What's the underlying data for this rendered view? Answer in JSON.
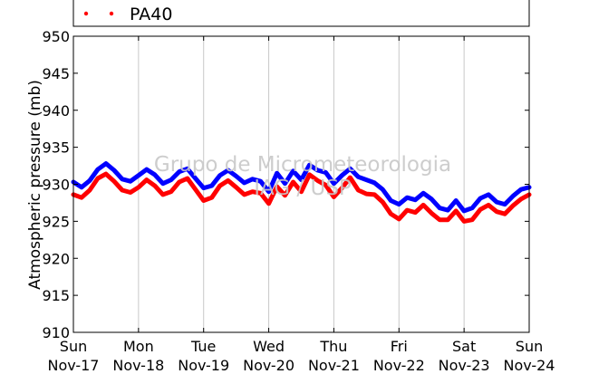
{
  "chart_data": {
    "type": "line",
    "ylabel": "Atmospheric pressure (mb)",
    "ylim": [
      910,
      950
    ],
    "yticks": [
      910,
      915,
      920,
      925,
      930,
      935,
      940,
      945,
      950
    ],
    "xlim": [
      "2013-11-17 00:00",
      "2013-11-24 00:00"
    ],
    "x_ticks": [
      {
        "day": "Sun",
        "date": "Nov-17"
      },
      {
        "day": "Mon",
        "date": "Nov-18"
      },
      {
        "day": "Tue",
        "date": "Nov-19"
      },
      {
        "day": "Wed",
        "date": "Nov-20"
      },
      {
        "day": "Thu",
        "date": "Nov-21"
      },
      {
        "day": "Fri",
        "date": "Nov-22"
      },
      {
        "day": "Sat",
        "date": "Nov-23"
      },
      {
        "day": "Sun",
        "date": "Nov-24"
      }
    ],
    "grid": "vertical lines at day ticks",
    "legend_placement": "top",
    "watermark": [
      "Grupo de Micrometeorologia",
      "IAG / USP"
    ],
    "series": [
      {
        "color": "#0000ff",
        "x": [
          "2013-11-17 00:00",
          "2013-11-17 03:00",
          "2013-11-17 06:00",
          "2013-11-17 09:00",
          "2013-11-17 12:00",
          "2013-11-17 15:00",
          "2013-11-17 18:00",
          "2013-11-17 21:00",
          "2013-11-18 00:00",
          "2013-11-18 03:00",
          "2013-11-18 06:00",
          "2013-11-18 09:00",
          "2013-11-18 12:00",
          "2013-11-18 15:00",
          "2013-11-18 18:00",
          "2013-11-18 21:00",
          "2013-11-19 00:00",
          "2013-11-19 03:00",
          "2013-11-19 06:00",
          "2013-11-19 09:00",
          "2013-11-19 12:00",
          "2013-11-19 15:00",
          "2013-11-19 18:00",
          "2013-11-19 21:00",
          "2013-11-20 00:00",
          "2013-11-20 03:00",
          "2013-11-20 06:00",
          "2013-11-20 09:00",
          "2013-11-20 12:00",
          "2013-11-20 15:00",
          "2013-11-20 18:00",
          "2013-11-20 21:00",
          "2013-11-21 00:00",
          "2013-11-21 03:00",
          "2013-11-21 06:00",
          "2013-11-21 09:00",
          "2013-11-21 12:00",
          "2013-11-21 15:00",
          "2013-11-21 18:00",
          "2013-11-21 21:00",
          "2013-11-22 00:00",
          "2013-11-22 03:00",
          "2013-11-22 06:00",
          "2013-11-22 09:00",
          "2013-11-22 12:00",
          "2013-11-22 15:00",
          "2013-11-22 18:00",
          "2013-11-22 21:00",
          "2013-11-23 00:00",
          "2013-11-23 03:00",
          "2013-11-23 06:00",
          "2013-11-23 09:00",
          "2013-11-23 12:00",
          "2013-11-23 15:00",
          "2013-11-23 18:00",
          "2013-11-23 21:00",
          "2013-11-24 00:00"
        ],
        "values": [
          930.3,
          929.6,
          930.5,
          932.0,
          932.8,
          931.9,
          930.7,
          930.4,
          931.2,
          932.0,
          931.3,
          930.1,
          930.6,
          931.7,
          932.1,
          930.8,
          929.5,
          929.8,
          931.2,
          931.9,
          931.1,
          930.2,
          930.7,
          930.4,
          929.0,
          931.5,
          930.1,
          931.8,
          930.6,
          932.6,
          931.9,
          931.6,
          930.1,
          931.2,
          932.1,
          931.0,
          930.6,
          930.2,
          929.3,
          927.8,
          927.3,
          928.2,
          927.9,
          928.8,
          928.0,
          926.8,
          926.5,
          927.8,
          926.4,
          926.8,
          928.1,
          928.6,
          927.6,
          927.3,
          928.4,
          929.3,
          929.6
        ]
      },
      {
        "name": "PA40",
        "color": "#ff0000",
        "x": [
          "2013-11-17 00:00",
          "2013-11-17 03:00",
          "2013-11-17 06:00",
          "2013-11-17 09:00",
          "2013-11-17 12:00",
          "2013-11-17 15:00",
          "2013-11-17 18:00",
          "2013-11-17 21:00",
          "2013-11-18 00:00",
          "2013-11-18 03:00",
          "2013-11-18 06:00",
          "2013-11-18 09:00",
          "2013-11-18 12:00",
          "2013-11-18 15:00",
          "2013-11-18 18:00",
          "2013-11-18 21:00",
          "2013-11-19 00:00",
          "2013-11-19 03:00",
          "2013-11-19 06:00",
          "2013-11-19 09:00",
          "2013-11-19 12:00",
          "2013-11-19 15:00",
          "2013-11-19 18:00",
          "2013-11-19 21:00",
          "2013-11-20 00:00",
          "2013-11-20 03:00",
          "2013-11-20 06:00",
          "2013-11-20 09:00",
          "2013-11-20 12:00",
          "2013-11-20 15:00",
          "2013-11-20 18:00",
          "2013-11-20 21:00",
          "2013-11-21 00:00",
          "2013-11-21 03:00",
          "2013-11-21 06:00",
          "2013-11-21 09:00",
          "2013-11-21 12:00",
          "2013-11-21 15:00",
          "2013-11-21 18:00",
          "2013-11-21 21:00",
          "2013-11-22 00:00",
          "2013-11-22 03:00",
          "2013-11-22 06:00",
          "2013-11-22 09:00",
          "2013-11-22 12:00",
          "2013-11-22 15:00",
          "2013-11-22 18:00",
          "2013-11-22 21:00",
          "2013-11-23 00:00",
          "2013-11-23 03:00",
          "2013-11-23 06:00",
          "2013-11-23 09:00",
          "2013-11-23 12:00",
          "2013-11-23 15:00",
          "2013-11-23 18:00",
          "2013-11-23 21:00",
          "2013-11-24 00:00"
        ],
        "values": [
          928.6,
          928.2,
          929.2,
          930.8,
          931.4,
          930.4,
          929.2,
          928.9,
          929.6,
          930.6,
          929.8,
          928.6,
          929.0,
          930.3,
          930.8,
          929.3,
          927.8,
          928.2,
          929.8,
          930.5,
          929.6,
          928.6,
          929.0,
          928.8,
          927.4,
          929.7,
          928.5,
          930.3,
          929.0,
          931.3,
          930.5,
          929.9,
          928.3,
          929.5,
          930.9,
          929.2,
          928.7,
          928.6,
          927.6,
          926.0,
          925.3,
          926.5,
          926.2,
          927.2,
          926.1,
          925.2,
          925.2,
          926.4,
          925.0,
          925.2,
          926.6,
          927.2,
          926.3,
          926.0,
          927.1,
          928.0,
          928.6
        ]
      }
    ]
  }
}
